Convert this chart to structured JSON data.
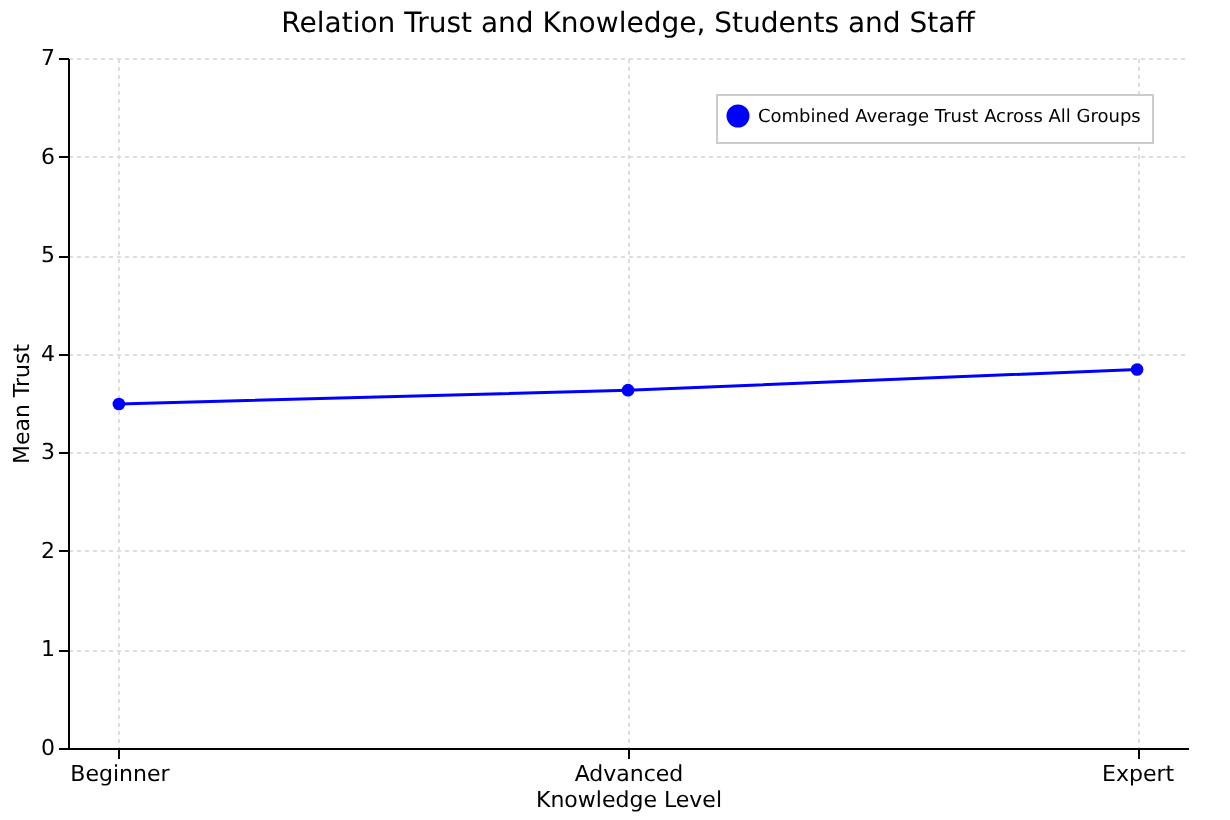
{
  "chart_data": {
    "type": "line",
    "title": "Relation Trust and Knowledge, Students and Staff",
    "xlabel": "Knowledge Level",
    "ylabel": "Mean Trust",
    "categories": [
      "Beginner",
      "Advanced",
      "Expert"
    ],
    "series": [
      {
        "name": "Combined Average Trust Across All Groups",
        "color": "#0000ff",
        "values": [
          3.49,
          3.63,
          3.84
        ]
      }
    ],
    "ylim": [
      0,
      7
    ],
    "yticks": [
      0,
      1,
      2,
      3,
      4,
      5,
      6,
      7
    ],
    "grid": true,
    "legend": "top right",
    "marker": "circle",
    "line_style": "solid"
  }
}
